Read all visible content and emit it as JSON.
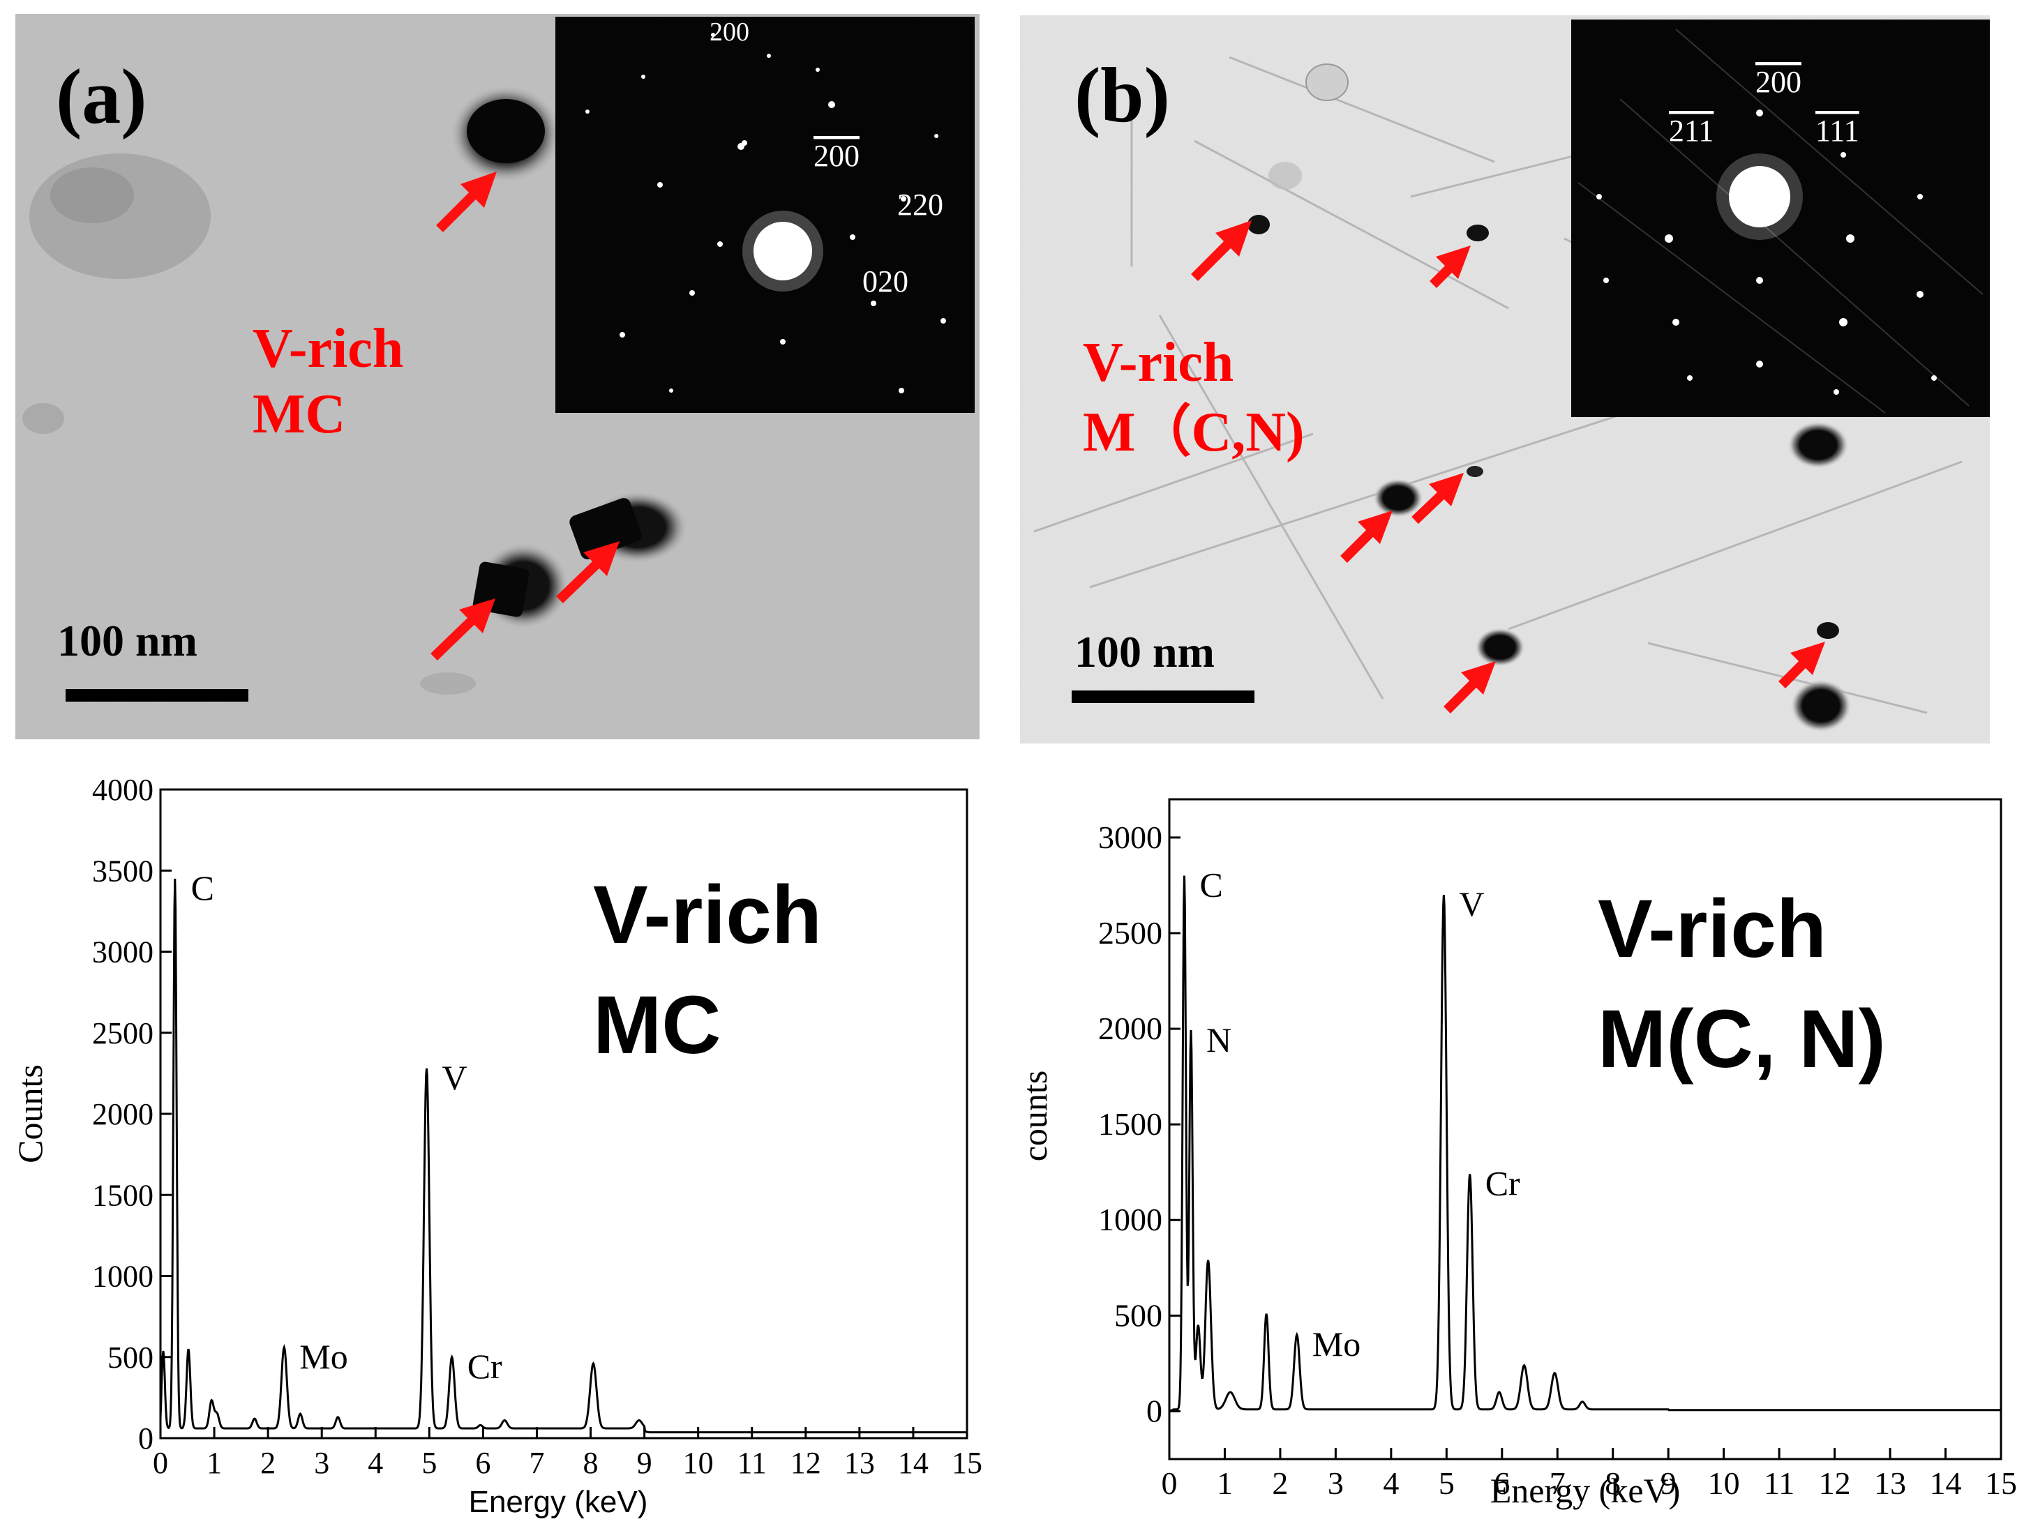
{
  "panels": {
    "a": {
      "label": "(a)",
      "annotation": [
        "V-rich",
        "MC"
      ],
      "scale_bar": "100 nm",
      "saed_labels": [
        "200",
        "200",
        "220",
        "020"
      ]
    },
    "b": {
      "label": "(b)",
      "annotation": [
        "V-rich",
        "M（C,N)"
      ],
      "scale_bar": "100 nm",
      "saed_labels": [
        "200",
        "211",
        "111"
      ]
    }
  },
  "colors": {
    "annotation": "#ff0000",
    "arrow": "#ff1010",
    "saed_background": "#050505",
    "line": "#000000"
  },
  "chart_data": [
    {
      "type": "line",
      "title": "",
      "xlabel": "Energy (keV)",
      "ylabel": "Counts",
      "xlim": [
        0,
        15
      ],
      "ylim": [
        0,
        4000
      ],
      "xticks": [
        0,
        1,
        2,
        3,
        4,
        5,
        6,
        7,
        8,
        9,
        10,
        11,
        12,
        13,
        14,
        15
      ],
      "yticks": [
        0,
        500,
        1000,
        1500,
        2000,
        2500,
        3000,
        3500,
        4000
      ],
      "grid": false,
      "annotation": [
        "V-rich",
        "MC"
      ],
      "peak_labels": [
        {
          "text": "C",
          "x": 0.28,
          "y": 3450
        },
        {
          "text": "Mo",
          "x": 2.3,
          "y": 560
        },
        {
          "text": "V",
          "x": 4.95,
          "y": 2280
        },
        {
          "text": "Cr",
          "x": 5.42,
          "y": 500
        }
      ],
      "baseline": 60,
      "peaks": [
        {
          "x": 0.05,
          "y": 560,
          "w": 0.03
        },
        {
          "x": 0.27,
          "y": 3450,
          "w": 0.03
        },
        {
          "x": 0.52,
          "y": 550,
          "w": 0.035
        },
        {
          "x": 0.95,
          "y": 230,
          "w": 0.04
        },
        {
          "x": 1.05,
          "y": 150,
          "w": 0.04
        },
        {
          "x": 1.75,
          "y": 120,
          "w": 0.04
        },
        {
          "x": 2.3,
          "y": 560,
          "w": 0.05
        },
        {
          "x": 2.6,
          "y": 150,
          "w": 0.04
        },
        {
          "x": 3.3,
          "y": 130,
          "w": 0.04
        },
        {
          "x": 4.95,
          "y": 2280,
          "w": 0.05
        },
        {
          "x": 5.42,
          "y": 500,
          "w": 0.05
        },
        {
          "x": 5.95,
          "y": 80,
          "w": 0.04
        },
        {
          "x": 6.4,
          "y": 110,
          "w": 0.05
        },
        {
          "x": 8.05,
          "y": 460,
          "w": 0.06
        },
        {
          "x": 8.9,
          "y": 110,
          "w": 0.06
        }
      ]
    },
    {
      "type": "line",
      "title": "",
      "xlabel": "Energy (keV)",
      "ylabel": "counts",
      "xlim": [
        0,
        15
      ],
      "ylim": [
        -250,
        3200
      ],
      "xticks": [
        0,
        1,
        2,
        3,
        4,
        5,
        6,
        7,
        8,
        9,
        10,
        11,
        12,
        13,
        14,
        15
      ],
      "yticks": [
        0,
        500,
        1000,
        1500,
        2000,
        2500,
        3000
      ],
      "grid": false,
      "annotation": [
        "V-rich",
        "M(C, N)"
      ],
      "peak_labels": [
        {
          "text": "C",
          "x": 0.27,
          "y": 2800
        },
        {
          "text": "N",
          "x": 0.39,
          "y": 1990
        },
        {
          "text": "Mo",
          "x": 2.3,
          "y": 400
        },
        {
          "text": "V",
          "x": 4.95,
          "y": 2700
        },
        {
          "text": "Cr",
          "x": 5.42,
          "y": 1240
        }
      ],
      "baseline": 10,
      "peaks": [
        {
          "x": 0.27,
          "y": 2800,
          "w": 0.03
        },
        {
          "x": 0.39,
          "y": 1990,
          "w": 0.03
        },
        {
          "x": 0.52,
          "y": 450,
          "w": 0.04
        },
        {
          "x": 0.7,
          "y": 790,
          "w": 0.05
        },
        {
          "x": 1.1,
          "y": 100,
          "w": 0.08
        },
        {
          "x": 1.75,
          "y": 510,
          "w": 0.04
        },
        {
          "x": 2.3,
          "y": 400,
          "w": 0.05
        },
        {
          "x": 4.95,
          "y": 2700,
          "w": 0.05
        },
        {
          "x": 5.42,
          "y": 1240,
          "w": 0.05
        },
        {
          "x": 5.95,
          "y": 100,
          "w": 0.05
        },
        {
          "x": 6.4,
          "y": 240,
          "w": 0.06
        },
        {
          "x": 6.95,
          "y": 200,
          "w": 0.06
        },
        {
          "x": 7.45,
          "y": 50,
          "w": 0.05
        }
      ]
    }
  ]
}
